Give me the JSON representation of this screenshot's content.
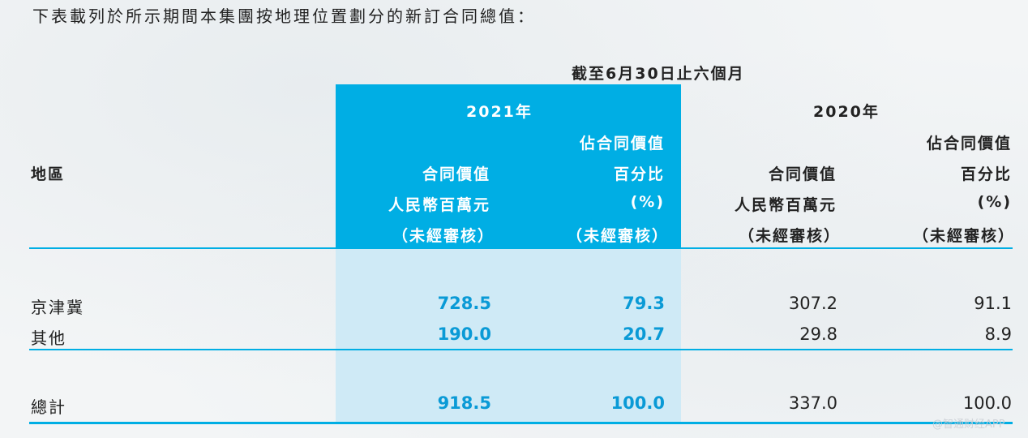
{
  "intro": "下表載列於所示期間本集團按地理位置劃分的新訂合同總值：",
  "header": {
    "period": "截至6月30日止六個月",
    "year_2021": "2021年",
    "year_2020": "2020年",
    "region": "地區",
    "contract_value_l1": "合同價值",
    "contract_value_l2": "人民幣百萬元",
    "contract_value_l3": "（未經審核）",
    "share_l1": "佔合同價值",
    "share_l2": "百分比",
    "share_l3": "(%)",
    "share_l4": "（未經審核）"
  },
  "rows": [
    {
      "region": "京津冀",
      "v2021": "728.5",
      "p2021": "79.3",
      "v2020": "307.2",
      "p2020": "91.1"
    },
    {
      "region": "其他",
      "v2021": "190.0",
      "p2021": "20.7",
      "v2020": "29.8",
      "p2020": "8.9"
    }
  ],
  "total": {
    "region": "總計",
    "v2021": "918.5",
    "p2021": "100.0",
    "v2020": "337.0",
    "p2020": "100.0"
  },
  "watermark": "@智通财经APP",
  "colors": {
    "accent": "#00aee4",
    "accent_light": "#cfeaf6",
    "value_blue": "#0a9ad6",
    "rule": "#00aee4"
  }
}
